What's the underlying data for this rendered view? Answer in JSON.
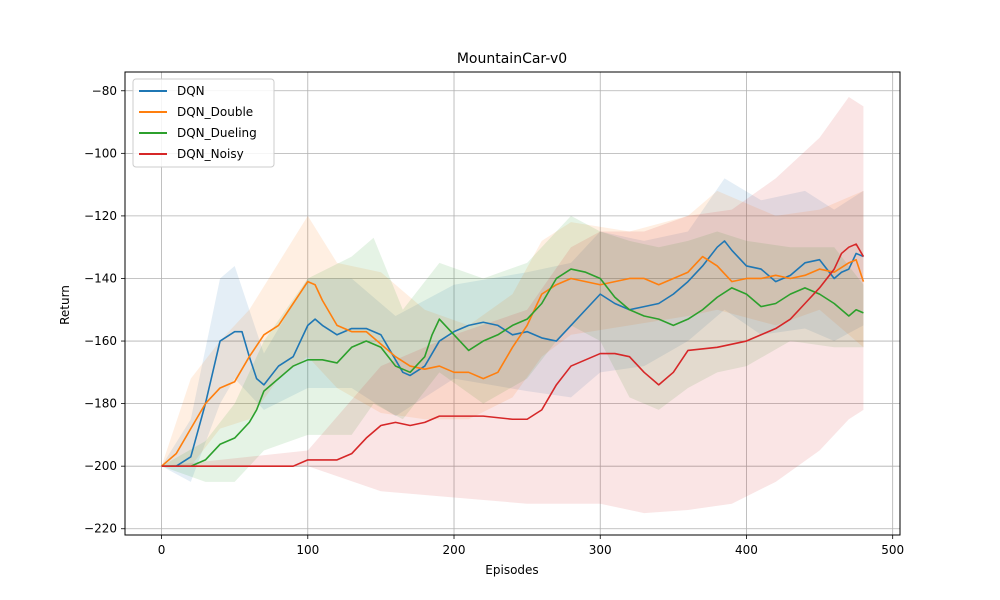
{
  "chart_data": {
    "type": "line",
    "title": "MountainCar-v0",
    "xlabel": "Episodes",
    "ylabel": "Return",
    "xlim": [
      -25,
      505
    ],
    "ylim": [
      -222,
      -74
    ],
    "xticks": [
      0,
      100,
      200,
      300,
      400,
      500
    ],
    "yticks": [
      -80,
      -100,
      -120,
      -140,
      -160,
      -180,
      -200,
      -220
    ],
    "xtick_labels": [
      "0",
      "100",
      "200",
      "300",
      "400",
      "500"
    ],
    "ytick_labels": [
      "−80",
      "−100",
      "−120",
      "−140",
      "−160",
      "−180",
      "−200",
      "−220"
    ],
    "grid": true,
    "legend_position": "top-left",
    "series": [
      {
        "name": "DQN",
        "color": "#1f77b4",
        "points": [
          [
            0,
            -200
          ],
          [
            10,
            -200
          ],
          [
            20,
            -197
          ],
          [
            30,
            -180
          ],
          [
            40,
            -160
          ],
          [
            50,
            -157
          ],
          [
            55,
            -157
          ],
          [
            60,
            -165
          ],
          [
            65,
            -172
          ],
          [
            70,
            -174
          ],
          [
            80,
            -168
          ],
          [
            90,
            -165
          ],
          [
            100,
            -155
          ],
          [
            105,
            -153
          ],
          [
            110,
            -155
          ],
          [
            120,
            -158
          ],
          [
            130,
            -156
          ],
          [
            140,
            -156
          ],
          [
            150,
            -158
          ],
          [
            160,
            -166
          ],
          [
            165,
            -170
          ],
          [
            170,
            -171
          ],
          [
            180,
            -168
          ],
          [
            190,
            -160
          ],
          [
            200,
            -157
          ],
          [
            210,
            -155
          ],
          [
            220,
            -154
          ],
          [
            230,
            -155
          ],
          [
            240,
            -158
          ],
          [
            250,
            -157
          ],
          [
            260,
            -159
          ],
          [
            270,
            -160
          ],
          [
            280,
            -155
          ],
          [
            290,
            -150
          ],
          [
            300,
            -145
          ],
          [
            310,
            -148
          ],
          [
            320,
            -150
          ],
          [
            330,
            -149
          ],
          [
            340,
            -148
          ],
          [
            350,
            -145
          ],
          [
            360,
            -141
          ],
          [
            370,
            -136
          ],
          [
            380,
            -130
          ],
          [
            385,
            -128
          ],
          [
            390,
            -131
          ],
          [
            400,
            -136
          ],
          [
            410,
            -137
          ],
          [
            420,
            -141
          ],
          [
            430,
            -139
          ],
          [
            440,
            -135
          ],
          [
            450,
            -134
          ],
          [
            460,
            -140
          ],
          [
            465,
            -138
          ],
          [
            470,
            -137
          ],
          [
            475,
            -132
          ],
          [
            480,
            -133
          ]
        ],
        "band": [
          [
            0,
            -200,
            -200
          ],
          [
            20,
            -205,
            -185
          ],
          [
            40,
            -180,
            -140
          ],
          [
            50,
            -172,
            -136
          ],
          [
            70,
            -182,
            -164
          ],
          [
            100,
            -175,
            -140
          ],
          [
            130,
            -175,
            -140
          ],
          [
            160,
            -184,
            -152
          ],
          [
            200,
            -172,
            -142
          ],
          [
            250,
            -176,
            -138
          ],
          [
            280,
            -178,
            -135
          ],
          [
            300,
            -170,
            -125
          ],
          [
            330,
            -168,
            -128
          ],
          [
            360,
            -160,
            -125
          ],
          [
            385,
            -150,
            -108
          ],
          [
            410,
            -158,
            -115
          ],
          [
            440,
            -156,
            -112
          ],
          [
            460,
            -160,
            -118
          ],
          [
            480,
            -155,
            -112
          ]
        ]
      },
      {
        "name": "DQN_Double",
        "color": "#ff7f0e",
        "points": [
          [
            0,
            -200
          ],
          [
            10,
            -196
          ],
          [
            20,
            -188
          ],
          [
            30,
            -180
          ],
          [
            40,
            -175
          ],
          [
            50,
            -173
          ],
          [
            60,
            -165
          ],
          [
            70,
            -158
          ],
          [
            80,
            -155
          ],
          [
            90,
            -148
          ],
          [
            100,
            -141
          ],
          [
            105,
            -142
          ],
          [
            110,
            -147
          ],
          [
            120,
            -155
          ],
          [
            130,
            -157
          ],
          [
            140,
            -157
          ],
          [
            150,
            -161
          ],
          [
            160,
            -165
          ],
          [
            170,
            -168
          ],
          [
            180,
            -169
          ],
          [
            190,
            -168
          ],
          [
            200,
            -170
          ],
          [
            210,
            -170
          ],
          [
            220,
            -172
          ],
          [
            230,
            -170
          ],
          [
            240,
            -162
          ],
          [
            250,
            -155
          ],
          [
            260,
            -145
          ],
          [
            270,
            -142
          ],
          [
            280,
            -140
          ],
          [
            290,
            -141
          ],
          [
            300,
            -142
          ],
          [
            310,
            -141
          ],
          [
            320,
            -140
          ],
          [
            330,
            -140
          ],
          [
            340,
            -142
          ],
          [
            350,
            -140
          ],
          [
            360,
            -138
          ],
          [
            370,
            -133
          ],
          [
            380,
            -136
          ],
          [
            390,
            -141
          ],
          [
            400,
            -140
          ],
          [
            410,
            -140
          ],
          [
            420,
            -139
          ],
          [
            430,
            -140
          ],
          [
            440,
            -139
          ],
          [
            450,
            -137
          ],
          [
            460,
            -138
          ],
          [
            470,
            -135
          ],
          [
            475,
            -134
          ],
          [
            480,
            -141
          ]
        ],
        "band": [
          [
            0,
            -200,
            -200
          ],
          [
            20,
            -200,
            -172
          ],
          [
            40,
            -188,
            -160
          ],
          [
            60,
            -185,
            -150
          ],
          [
            80,
            -172,
            -135
          ],
          [
            100,
            -165,
            -120
          ],
          [
            120,
            -175,
            -135
          ],
          [
            150,
            -183,
            -138
          ],
          [
            180,
            -185,
            -150
          ],
          [
            210,
            -185,
            -155
          ],
          [
            240,
            -178,
            -145
          ],
          [
            260,
            -165,
            -128
          ],
          [
            280,
            -158,
            -122
          ],
          [
            320,
            -155,
            -125
          ],
          [
            360,
            -152,
            -120
          ],
          [
            380,
            -150,
            -112
          ],
          [
            420,
            -155,
            -120
          ],
          [
            450,
            -150,
            -118
          ],
          [
            480,
            -162,
            -112
          ]
        ]
      },
      {
        "name": "DQN_Dueling",
        "color": "#2ca02c",
        "points": [
          [
            0,
            -200
          ],
          [
            20,
            -200
          ],
          [
            30,
            -198
          ],
          [
            40,
            -193
          ],
          [
            50,
            -191
          ],
          [
            60,
            -186
          ],
          [
            65,
            -182
          ],
          [
            70,
            -176
          ],
          [
            80,
            -172
          ],
          [
            90,
            -168
          ],
          [
            100,
            -166
          ],
          [
            110,
            -166
          ],
          [
            120,
            -167
          ],
          [
            130,
            -162
          ],
          [
            140,
            -160
          ],
          [
            150,
            -162
          ],
          [
            160,
            -168
          ],
          [
            170,
            -170
          ],
          [
            180,
            -165
          ],
          [
            185,
            -158
          ],
          [
            190,
            -153
          ],
          [
            200,
            -158
          ],
          [
            210,
            -163
          ],
          [
            220,
            -160
          ],
          [
            230,
            -158
          ],
          [
            240,
            -155
          ],
          [
            250,
            -153
          ],
          [
            260,
            -148
          ],
          [
            270,
            -140
          ],
          [
            280,
            -137
          ],
          [
            290,
            -138
          ],
          [
            300,
            -140
          ],
          [
            310,
            -146
          ],
          [
            320,
            -150
          ],
          [
            330,
            -152
          ],
          [
            340,
            -153
          ],
          [
            350,
            -155
          ],
          [
            360,
            -153
          ],
          [
            370,
            -150
          ],
          [
            380,
            -146
          ],
          [
            390,
            -143
          ],
          [
            400,
            -145
          ],
          [
            410,
            -149
          ],
          [
            420,
            -148
          ],
          [
            430,
            -145
          ],
          [
            440,
            -143
          ],
          [
            450,
            -145
          ],
          [
            460,
            -148
          ],
          [
            470,
            -152
          ],
          [
            475,
            -150
          ],
          [
            480,
            -151
          ]
        ],
        "band": [
          [
            0,
            -200,
            -200
          ],
          [
            30,
            -205,
            -192
          ],
          [
            50,
            -205,
            -180
          ],
          [
            70,
            -195,
            -160
          ],
          [
            100,
            -190,
            -140
          ],
          [
            130,
            -190,
            -133
          ],
          [
            145,
            -180,
            -127
          ],
          [
            165,
            -185,
            -150
          ],
          [
            190,
            -170,
            -135
          ],
          [
            220,
            -180,
            -140
          ],
          [
            250,
            -172,
            -135
          ],
          [
            270,
            -160,
            -125
          ],
          [
            280,
            -155,
            -120
          ],
          [
            300,
            -160,
            -125
          ],
          [
            320,
            -178,
            -128
          ],
          [
            340,
            -182,
            -130
          ],
          [
            360,
            -175,
            -128
          ],
          [
            380,
            -170,
            -125
          ],
          [
            400,
            -168,
            -128
          ],
          [
            430,
            -160,
            -130
          ],
          [
            460,
            -162,
            -130
          ],
          [
            480,
            -162,
            -142
          ]
        ]
      },
      {
        "name": "DQN_Noisy",
        "color": "#d62728",
        "points": [
          [
            0,
            -200
          ],
          [
            30,
            -200
          ],
          [
            50,
            -200
          ],
          [
            70,
            -200
          ],
          [
            90,
            -200
          ],
          [
            100,
            -198
          ],
          [
            110,
            -198
          ],
          [
            120,
            -198
          ],
          [
            130,
            -196
          ],
          [
            140,
            -191
          ],
          [
            150,
            -187
          ],
          [
            160,
            -186
          ],
          [
            170,
            -187
          ],
          [
            180,
            -186
          ],
          [
            190,
            -184
          ],
          [
            200,
            -184
          ],
          [
            220,
            -184
          ],
          [
            240,
            -185
          ],
          [
            250,
            -185
          ],
          [
            260,
            -182
          ],
          [
            270,
            -174
          ],
          [
            280,
            -168
          ],
          [
            290,
            -166
          ],
          [
            300,
            -164
          ],
          [
            310,
            -164
          ],
          [
            320,
            -165
          ],
          [
            330,
            -170
          ],
          [
            340,
            -174
          ],
          [
            350,
            -170
          ],
          [
            360,
            -163
          ],
          [
            380,
            -162
          ],
          [
            400,
            -160
          ],
          [
            410,
            -158
          ],
          [
            420,
            -156
          ],
          [
            430,
            -153
          ],
          [
            440,
            -148
          ],
          [
            450,
            -143
          ],
          [
            460,
            -137
          ],
          [
            465,
            -132
          ],
          [
            470,
            -130
          ],
          [
            475,
            -129
          ],
          [
            480,
            -133
          ]
        ],
        "band": [
          [
            0,
            -200,
            -200
          ],
          [
            100,
            -200,
            -195
          ],
          [
            150,
            -208,
            -168
          ],
          [
            200,
            -210,
            -158
          ],
          [
            250,
            -212,
            -150
          ],
          [
            280,
            -212,
            -130
          ],
          [
            300,
            -212,
            -125
          ],
          [
            330,
            -215,
            -125
          ],
          [
            360,
            -214,
            -120
          ],
          [
            390,
            -212,
            -118
          ],
          [
            420,
            -205,
            -108
          ],
          [
            450,
            -195,
            -95
          ],
          [
            470,
            -185,
            -82
          ],
          [
            480,
            -182,
            -85
          ]
        ]
      }
    ]
  }
}
